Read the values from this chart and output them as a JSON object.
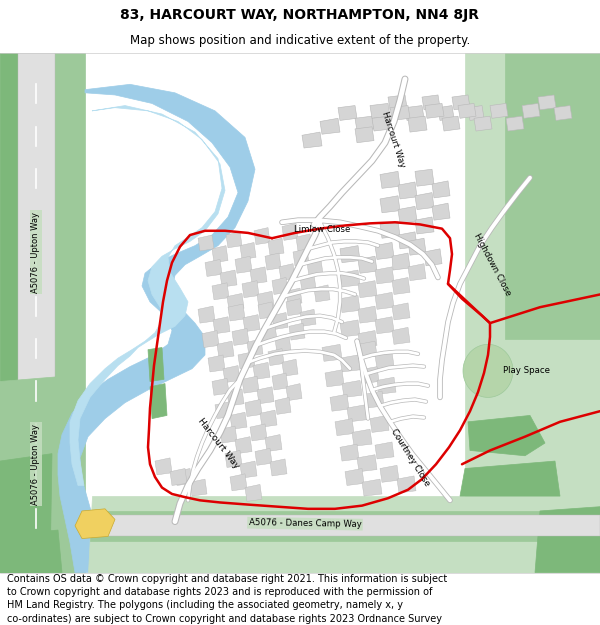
{
  "title": "83, HARCOURT WAY, NORTHAMPTON, NN4 8JR",
  "subtitle": "Map shows position and indicative extent of the property.",
  "footer": "Contains OS data © Crown copyright and database right 2021. This information is subject\nto Crown copyright and database rights 2023 and is reproduced with the permission of\nHM Land Registry. The polygons (including the associated geometry, namely x, y\nco-ordinates) are subject to Crown copyright and database rights 2023 Ordnance Survey\n100026316.",
  "title_fontsize": 10,
  "subtitle_fontsize": 8.5,
  "footer_fontsize": 7.0,
  "map_bg": "#f5f5f5",
  "green_dark": "#7db87a",
  "green_med": "#9dc99a",
  "green_light": "#c5dfc2",
  "river_blue": "#9ecde8",
  "river_light": "#b8dff0",
  "building_fill": "#d5d5d5",
  "building_edge": "#b8b8b8",
  "road_fill": "#ffffff",
  "road_edge": "#c5c5c5",
  "road_green_fill": "#c5dec0",
  "road_label_bg": "#c5dec0",
  "red_line": "#dd0000",
  "play_green": "#b5d5aa"
}
